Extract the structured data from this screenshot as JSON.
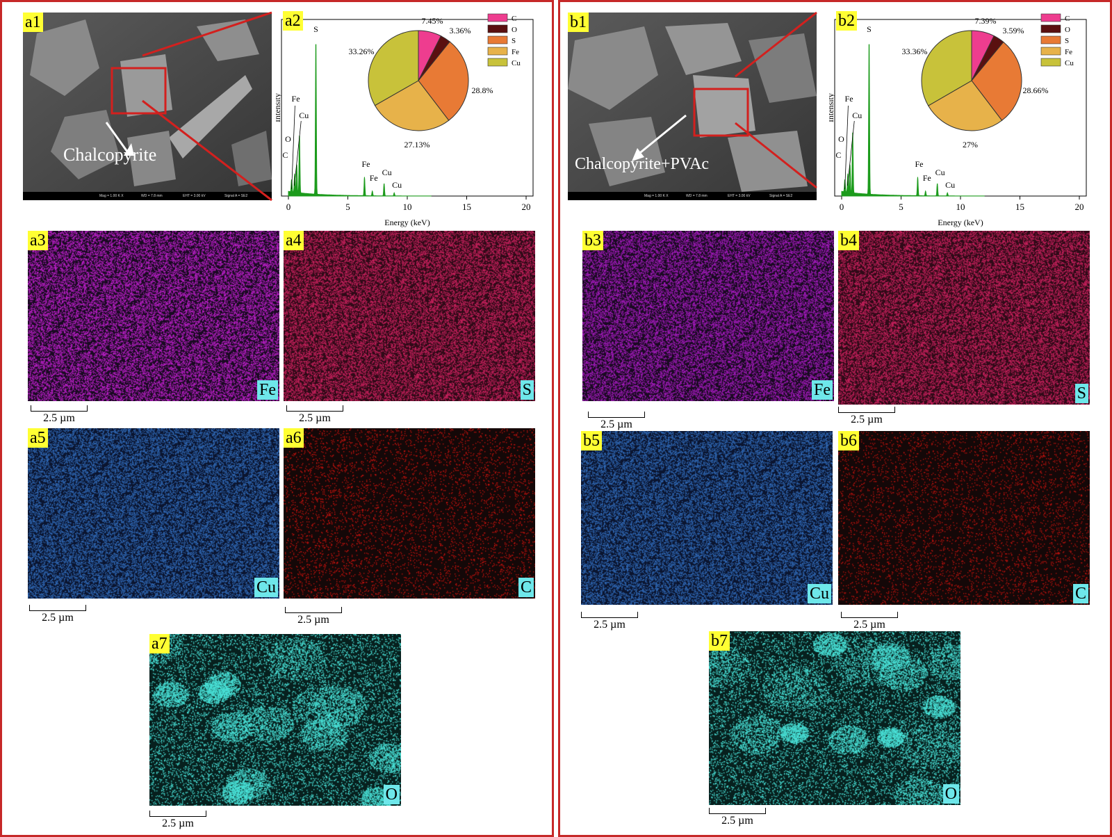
{
  "panels": {
    "a": {
      "sem_tag": "a1",
      "sem_label": "Chalcopyrite",
      "sem_status": [
        "Mag = 1.00 K X",
        "WD = 7.8 mm",
        "EHT = 3.00 kV",
        "Signal A = SE2"
      ],
      "chart_tag": "a2",
      "maps": [
        {
          "tag": "a3",
          "element": "Fe",
          "color": "#b61ec4"
        },
        {
          "tag": "a4",
          "element": "S",
          "color": "#c2205a"
        },
        {
          "tag": "a5",
          "element": "Cu",
          "color": "#2f66b2"
        },
        {
          "tag": "a6",
          "element": "C",
          "color": "#c1120e"
        },
        {
          "tag": "a7",
          "element": "O",
          "color": "#49e0d6"
        }
      ]
    },
    "b": {
      "sem_tag": "b1",
      "sem_label": "Chalcopyrite+PVAc",
      "sem_status": [
        "Mag = 1.00 K X",
        "WD = 7.8 mm",
        "EHT = 3.00 kV",
        "Signal A = SE2"
      ],
      "chart_tag": "b2",
      "maps": [
        {
          "tag": "b3",
          "element": "Fe",
          "color": "#a01ab8"
        },
        {
          "tag": "b4",
          "element": "S",
          "color": "#c2205a"
        },
        {
          "tag": "b5",
          "element": "Cu",
          "color": "#2f66b2"
        },
        {
          "tag": "b6",
          "element": "C",
          "color": "#b8120e"
        },
        {
          "tag": "b7",
          "element": "O",
          "color": "#49e0d6"
        }
      ]
    }
  },
  "scale_label": "2.5 µm",
  "chart_data": [
    {
      "panel": "a2",
      "type": "line",
      "xlabel": "Energy (keV)",
      "ylabel": "Intensity",
      "xlim": [
        0,
        20
      ],
      "xticks": [
        0,
        5,
        10,
        15,
        20
      ],
      "peak_labels": [
        {
          "label": "C",
          "energy": 0.27
        },
        {
          "label": "O",
          "energy": 0.52
        },
        {
          "label": "Cu",
          "energy": 0.93
        },
        {
          "label": "Fe",
          "energy": 0.7
        },
        {
          "label": "S",
          "energy": 2.31
        },
        {
          "label": "Fe",
          "energy": 6.4
        },
        {
          "label": "Fe",
          "energy": 7.06
        },
        {
          "label": "Cu",
          "energy": 8.05
        },
        {
          "label": "Cu",
          "energy": 8.9
        }
      ],
      "peaks": [
        [
          0.27,
          0.08
        ],
        [
          0.52,
          0.12
        ],
        [
          0.7,
          0.18
        ],
        [
          0.93,
          0.38
        ],
        [
          2.31,
          1.0
        ],
        [
          6.4,
          0.12
        ],
        [
          7.06,
          0.03
        ],
        [
          8.05,
          0.08
        ],
        [
          8.9,
          0.02
        ]
      ],
      "pie": {
        "labels": [
          "C",
          "O",
          "S",
          "Fe",
          "Cu"
        ],
        "values": [
          7.45,
          3.36,
          28.8,
          27.13,
          33.26
        ],
        "value_labels": [
          "7.45%",
          "3.36%",
          "28.8%",
          "27.13%",
          "33.26%"
        ],
        "colors": [
          "#ee3d8f",
          "#5a1010",
          "#e87a35",
          "#e7b24a",
          "#c8c23a"
        ]
      }
    },
    {
      "panel": "b2",
      "type": "line",
      "xlabel": "Energy (keV)",
      "ylabel": "Intensity",
      "xlim": [
        0,
        20
      ],
      "xticks": [
        0,
        5,
        10,
        15,
        20
      ],
      "peak_labels": [
        {
          "label": "C",
          "energy": 0.27
        },
        {
          "label": "O",
          "energy": 0.52
        },
        {
          "label": "Cu",
          "energy": 0.93
        },
        {
          "label": "Fe",
          "energy": 0.7
        },
        {
          "label": "S",
          "energy": 2.31
        },
        {
          "label": "Fe",
          "energy": 6.4
        },
        {
          "label": "Fe",
          "energy": 7.06
        },
        {
          "label": "Cu",
          "energy": 8.05
        },
        {
          "label": "Cu",
          "energy": 8.9
        }
      ],
      "peaks": [
        [
          0.27,
          0.08
        ],
        [
          0.52,
          0.12
        ],
        [
          0.7,
          0.18
        ],
        [
          0.93,
          0.4
        ],
        [
          2.31,
          1.0
        ],
        [
          6.4,
          0.12
        ],
        [
          7.06,
          0.03
        ],
        [
          8.05,
          0.08
        ],
        [
          8.9,
          0.02
        ]
      ],
      "pie": {
        "labels": [
          "C",
          "O",
          "S",
          "Fe",
          "Cu"
        ],
        "values": [
          7.39,
          3.59,
          28.66,
          27,
          33.36
        ],
        "value_labels": [
          "7.39%",
          "3.59%",
          "28.66%",
          "27%",
          "33.36%"
        ],
        "colors": [
          "#ee3d8f",
          "#5a1010",
          "#e87a35",
          "#e7b24a",
          "#c8c23a"
        ]
      }
    }
  ]
}
